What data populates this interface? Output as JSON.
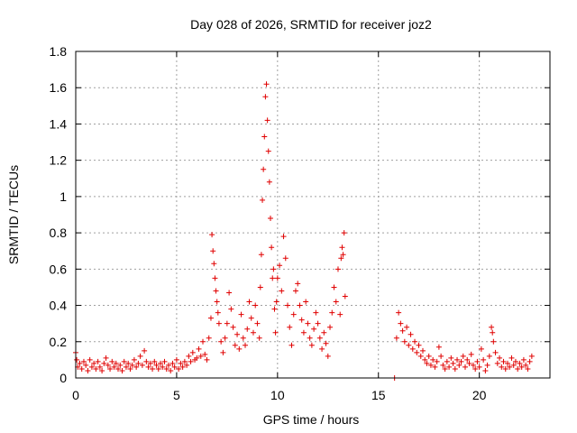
{
  "chart_data": {
    "type": "scatter",
    "title": "Day 028 of 2026, SRMTID for receiver joz2",
    "xlabel": "GPS time / hours",
    "ylabel": "SRMTID / TECUs",
    "xlim": [
      0,
      23.5
    ],
    "ylim": [
      0,
      1.8
    ],
    "xticks": [
      0,
      5,
      10,
      15,
      20
    ],
    "yticks": [
      0,
      0.2,
      0.4,
      0.6,
      0.8,
      1,
      1.2,
      1.4,
      1.6,
      1.8
    ],
    "xtick_labels": [
      "0",
      "5",
      "10",
      "15",
      "20"
    ],
    "ytick_labels": [
      "0",
      "0.2",
      "0.4",
      "0.6",
      "0.8",
      "1",
      "1.2",
      "1.4",
      "1.6",
      "1.8"
    ],
    "grid": true,
    "marker": "plus",
    "color": "#e00000",
    "series": [
      {
        "name": "SRMTID",
        "points": [
          [
            0.0,
            0.14
          ],
          [
            0.05,
            0.1
          ],
          [
            0.1,
            0.06
          ],
          [
            0.2,
            0.08
          ],
          [
            0.3,
            0.05
          ],
          [
            0.4,
            0.09
          ],
          [
            0.5,
            0.07
          ],
          [
            0.6,
            0.04
          ],
          [
            0.7,
            0.1
          ],
          [
            0.8,
            0.06
          ],
          [
            0.9,
            0.08
          ],
          [
            1.0,
            0.05
          ],
          [
            1.1,
            0.09
          ],
          [
            1.2,
            0.06
          ],
          [
            1.3,
            0.04
          ],
          [
            1.4,
            0.08
          ],
          [
            1.5,
            0.11
          ],
          [
            1.6,
            0.07
          ],
          [
            1.7,
            0.05
          ],
          [
            1.8,
            0.09
          ],
          [
            1.9,
            0.06
          ],
          [
            2.0,
            0.08
          ],
          [
            2.1,
            0.05
          ],
          [
            2.2,
            0.07
          ],
          [
            2.3,
            0.04
          ],
          [
            2.4,
            0.09
          ],
          [
            2.5,
            0.06
          ],
          [
            2.6,
            0.08
          ],
          [
            2.7,
            0.05
          ],
          [
            2.8,
            0.07
          ],
          [
            2.9,
            0.1
          ],
          [
            3.0,
            0.06
          ],
          [
            3.1,
            0.08
          ],
          [
            3.2,
            0.12
          ],
          [
            3.3,
            0.07
          ],
          [
            3.4,
            0.15
          ],
          [
            3.5,
            0.09
          ],
          [
            3.6,
            0.06
          ],
          [
            3.7,
            0.08
          ],
          [
            3.8,
            0.05
          ],
          [
            3.9,
            0.09
          ],
          [
            4.0,
            0.07
          ],
          [
            4.1,
            0.05
          ],
          [
            4.2,
            0.08
          ],
          [
            4.3,
            0.06
          ],
          [
            4.4,
            0.09
          ],
          [
            4.5,
            0.05
          ],
          [
            4.6,
            0.07
          ],
          [
            4.7,
            0.04
          ],
          [
            4.8,
            0.08
          ],
          [
            4.9,
            0.06
          ],
          [
            5.0,
            0.1
          ],
          [
            5.1,
            0.05
          ],
          [
            5.2,
            0.08
          ],
          [
            5.3,
            0.06
          ],
          [
            5.4,
            0.09
          ],
          [
            5.5,
            0.07
          ],
          [
            5.6,
            0.12
          ],
          [
            5.7,
            0.09
          ],
          [
            5.8,
            0.14
          ],
          [
            5.9,
            0.1
          ],
          [
            6.0,
            0.11
          ],
          [
            6.1,
            0.16
          ],
          [
            6.2,
            0.12
          ],
          [
            6.3,
            0.2
          ],
          [
            6.4,
            0.13
          ],
          [
            6.5,
            0.1
          ],
          [
            6.6,
            0.22
          ],
          [
            6.7,
            0.33
          ],
          [
            6.75,
            0.79
          ],
          [
            6.8,
            0.7
          ],
          [
            6.85,
            0.63
          ],
          [
            6.9,
            0.55
          ],
          [
            6.95,
            0.48
          ],
          [
            7.0,
            0.42
          ],
          [
            7.05,
            0.36
          ],
          [
            7.1,
            0.3
          ],
          [
            7.2,
            0.2
          ],
          [
            7.3,
            0.14
          ],
          [
            7.4,
            0.22
          ],
          [
            7.5,
            0.3
          ],
          [
            7.6,
            0.47
          ],
          [
            7.7,
            0.38
          ],
          [
            7.8,
            0.28
          ],
          [
            7.9,
            0.18
          ],
          [
            8.0,
            0.24
          ],
          [
            8.1,
            0.16
          ],
          [
            8.2,
            0.35
          ],
          [
            8.3,
            0.22
          ],
          [
            8.4,
            0.18
          ],
          [
            8.5,
            0.27
          ],
          [
            8.6,
            0.42
          ],
          [
            8.7,
            0.33
          ],
          [
            8.8,
            0.25
          ],
          [
            8.9,
            0.4
          ],
          [
            9.0,
            0.3
          ],
          [
            9.1,
            0.22
          ],
          [
            9.15,
            0.5
          ],
          [
            9.2,
            0.68
          ],
          [
            9.25,
            0.98
          ],
          [
            9.3,
            1.15
          ],
          [
            9.35,
            1.33
          ],
          [
            9.4,
            1.55
          ],
          [
            9.45,
            1.62
          ],
          [
            9.5,
            1.42
          ],
          [
            9.55,
            1.25
          ],
          [
            9.6,
            1.08
          ],
          [
            9.65,
            0.88
          ],
          [
            9.7,
            0.72
          ],
          [
            9.75,
            0.55
          ],
          [
            9.8,
            0.6
          ],
          [
            9.85,
            0.38
          ],
          [
            9.9,
            0.25
          ],
          [
            9.95,
            0.42
          ],
          [
            10.0,
            0.55
          ],
          [
            10.1,
            0.62
          ],
          [
            10.2,
            0.48
          ],
          [
            10.3,
            0.78
          ],
          [
            10.4,
            0.66
          ],
          [
            10.5,
            0.4
          ],
          [
            10.6,
            0.28
          ],
          [
            10.7,
            0.18
          ],
          [
            10.8,
            0.35
          ],
          [
            10.9,
            0.48
          ],
          [
            11.0,
            0.52
          ],
          [
            11.1,
            0.4
          ],
          [
            11.2,
            0.32
          ],
          [
            11.3,
            0.25
          ],
          [
            11.4,
            0.42
          ],
          [
            11.5,
            0.3
          ],
          [
            11.6,
            0.22
          ],
          [
            11.7,
            0.18
          ],
          [
            11.8,
            0.27
          ],
          [
            11.9,
            0.36
          ],
          [
            12.0,
            0.3
          ],
          [
            12.1,
            0.22
          ],
          [
            12.2,
            0.16
          ],
          [
            12.3,
            0.25
          ],
          [
            12.4,
            0.19
          ],
          [
            12.5,
            0.12
          ],
          [
            12.6,
            0.28
          ],
          [
            12.7,
            0.36
          ],
          [
            12.8,
            0.5
          ],
          [
            12.9,
            0.42
          ],
          [
            13.0,
            0.6
          ],
          [
            13.1,
            0.35
          ],
          [
            13.15,
            0.66
          ],
          [
            13.2,
            0.72
          ],
          [
            13.25,
            0.68
          ],
          [
            13.3,
            0.8
          ],
          [
            13.35,
            0.45
          ],
          [
            15.8,
            0.0
          ],
          [
            15.9,
            0.22
          ],
          [
            16.0,
            0.36
          ],
          [
            16.1,
            0.3
          ],
          [
            16.2,
            0.26
          ],
          [
            16.3,
            0.2
          ],
          [
            16.4,
            0.28
          ],
          [
            16.5,
            0.18
          ],
          [
            16.6,
            0.24
          ],
          [
            16.7,
            0.16
          ],
          [
            16.8,
            0.2
          ],
          [
            16.9,
            0.14
          ],
          [
            17.0,
            0.18
          ],
          [
            17.1,
            0.12
          ],
          [
            17.2,
            0.15
          ],
          [
            17.3,
            0.1
          ],
          [
            17.4,
            0.08
          ],
          [
            17.5,
            0.12
          ],
          [
            17.6,
            0.07
          ],
          [
            17.7,
            0.1
          ],
          [
            17.8,
            0.06
          ],
          [
            17.9,
            0.09
          ],
          [
            18.0,
            0.17
          ],
          [
            18.1,
            0.12
          ],
          [
            18.2,
            0.07
          ],
          [
            18.3,
            0.05
          ],
          [
            18.4,
            0.09
          ],
          [
            18.5,
            0.06
          ],
          [
            18.6,
            0.11
          ],
          [
            18.7,
            0.08
          ],
          [
            18.8,
            0.05
          ],
          [
            18.9,
            0.1
          ],
          [
            19.0,
            0.07
          ],
          [
            19.1,
            0.09
          ],
          [
            19.2,
            0.12
          ],
          [
            19.3,
            0.06
          ],
          [
            19.4,
            0.1
          ],
          [
            19.5,
            0.08
          ],
          [
            19.6,
            0.13
          ],
          [
            19.7,
            0.07
          ],
          [
            19.8,
            0.05
          ],
          [
            19.9,
            0.09
          ],
          [
            20.0,
            0.06
          ],
          [
            20.1,
            0.16
          ],
          [
            20.2,
            0.1
          ],
          [
            20.3,
            0.04
          ],
          [
            20.4,
            0.07
          ],
          [
            20.5,
            0.12
          ],
          [
            20.6,
            0.28
          ],
          [
            20.65,
            0.25
          ],
          [
            20.7,
            0.2
          ],
          [
            20.8,
            0.14
          ],
          [
            20.9,
            0.08
          ],
          [
            21.0,
            0.11
          ],
          [
            21.1,
            0.06
          ],
          [
            21.2,
            0.09
          ],
          [
            21.3,
            0.05
          ],
          [
            21.4,
            0.08
          ],
          [
            21.5,
            0.06
          ],
          [
            21.6,
            0.11
          ],
          [
            21.7,
            0.07
          ],
          [
            21.8,
            0.09
          ],
          [
            21.9,
            0.05
          ],
          [
            22.0,
            0.08
          ],
          [
            22.1,
            0.06
          ],
          [
            22.2,
            0.1
          ],
          [
            22.3,
            0.07
          ],
          [
            22.4,
            0.05
          ],
          [
            22.5,
            0.09
          ],
          [
            22.6,
            0.12
          ]
        ]
      }
    ]
  }
}
